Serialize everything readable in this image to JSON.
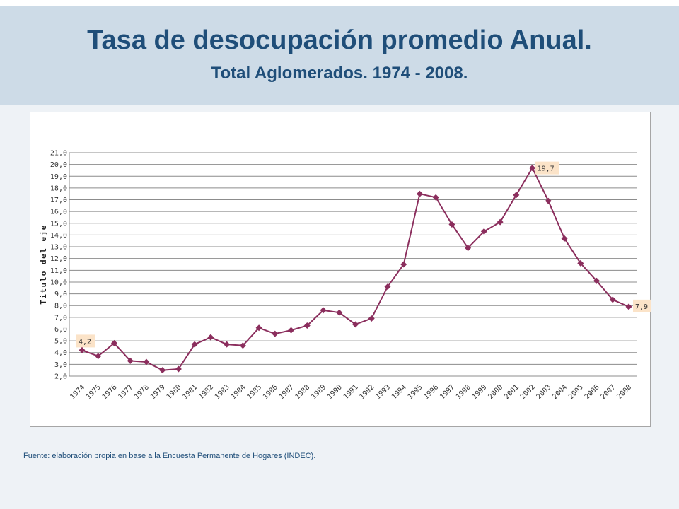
{
  "header": {
    "title": "Tasa de desocupación promedio Anual.",
    "subtitle": "Total Aglomerados. 1974 - 2008."
  },
  "footnote": "Fuente: elaboración propia en base a la Encuesta Permanente de Hogares (INDEC).",
  "colors": {
    "series": "#8b2e5d",
    "title": "#1f4e79",
    "label_bg": "#fbe3c8"
  },
  "chart_data": {
    "type": "line",
    "title": "",
    "xlabel": "",
    "ylabel": "Titulo del eje",
    "ylim": [
      2.0,
      21.0
    ],
    "ytick_step": 1.0,
    "ytick_labels": [
      "2,0",
      "3,0",
      "4,0",
      "5,0",
      "6,0",
      "7,0",
      "8,0",
      "9,0",
      "10,0",
      "11,0",
      "12,0",
      "13,0",
      "14,0",
      "15,0",
      "16,0",
      "17,0",
      "18,0",
      "19,0",
      "20,0",
      "21,0"
    ],
    "grid": true,
    "categories": [
      "1974",
      "1975",
      "1976",
      "1977",
      "1978",
      "1979",
      "1980",
      "1981",
      "1982",
      "1983",
      "1984",
      "1985",
      "1986",
      "1987",
      "1988",
      "1989",
      "1990",
      "1991",
      "1992",
      "1993",
      "1994",
      "1995",
      "1996",
      "1997",
      "1998",
      "1999",
      "2000",
      "2001",
      "2002",
      "2003",
      "2004",
      "2005",
      "2006",
      "2007",
      "2008"
    ],
    "series": [
      {
        "values": [
          4.2,
          3.7,
          4.8,
          3.3,
          3.2,
          2.5,
          2.6,
          4.7,
          5.3,
          4.7,
          4.6,
          6.1,
          5.6,
          5.9,
          6.3,
          7.6,
          7.4,
          6.4,
          6.9,
          9.6,
          11.5,
          17.5,
          17.2,
          14.9,
          12.9,
          14.3,
          15.1,
          17.4,
          19.7,
          16.9,
          13.7,
          11.6,
          10.1,
          8.5,
          7.9
        ]
      }
    ],
    "data_labels": [
      {
        "index": 0,
        "text": "4,2"
      },
      {
        "index": 28,
        "text": "19,7"
      },
      {
        "index": 34,
        "text": "7,9"
      }
    ]
  }
}
